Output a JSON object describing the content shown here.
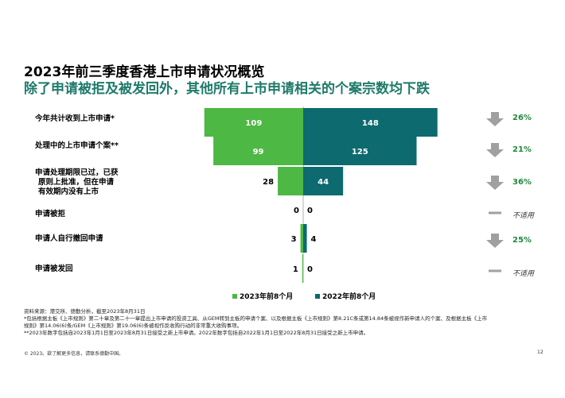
{
  "title": "2023年前三季度香港上市申请状况概览",
  "subtitle": "除了申请被拒及被发回外，其他所有上市申请相关的个案宗数均下跌",
  "chart_data": {
    "type": "bar",
    "categories": [
      "今年共计收到上市申请*",
      "处理中的上市申请个案**",
      "申请处理期限已过，已获原则上批准，但在申请有效期内没有上市",
      "申请被拒",
      "申请人自行撤回申请",
      "申请被发回"
    ],
    "series": [
      {
        "name": "2023年前8个月",
        "values": [
          109,
          99,
          28,
          0,
          3,
          1
        ],
        "color": "#4db843"
      },
      {
        "name": "2022年前8个月",
        "values": [
          148,
          125,
          44,
          0,
          4,
          0
        ],
        "color": "#0d6a6f"
      }
    ],
    "changes": [
      "26%",
      "21%",
      "36%",
      "不适用",
      "25%",
      "不适用"
    ]
  },
  "labels": {
    "cat0": "今年共计收到上市申请*",
    "cat1": "处理中的上市申请个案**",
    "cat2_l1": "申请处理期限已过，已获",
    "cat2_l2": "原则上批准，但在申请",
    "cat2_l3": "有效期内没有上市",
    "cat3": "申请被拒",
    "cat4": "申请人自行撤回申请",
    "cat5": "申请被发回"
  },
  "legend": {
    "s1": "2023年前8个月",
    "s2": "2022年前8个月"
  },
  "notes": {
    "n1": "资料来源：港交所、德勤分析，截至2023年8月31日",
    "n2": "*包括根据主板《上市规则》第二十章及第二十一章提出上市申请的投资工具、从GEM转到主板的申请个案、以及根据主板《上市规则》第8.21C条或第14.84条被视作新申请人的个案、及根据主板《上市",
    "n3": "规则》第14.06(6)条/GEM《上市规则》第19.06(6)条被视作反收购行动的非常重大收购事项。",
    "n4": "**2023年数字包括自2023年1月1日至2023年8月31日接受之新上市申请。2022年数字包括自2022年1月1日至2022年8月31日接受之新上市申请。"
  },
  "footer": {
    "copyright": "© 2023。欲了解更多信息，请联系德勤中国。",
    "page": "12"
  },
  "colors": {
    "green": "#4db843",
    "teal": "#0d6a6f",
    "arrow": "#a0a0a0",
    "pct": "#1f8a3a"
  }
}
